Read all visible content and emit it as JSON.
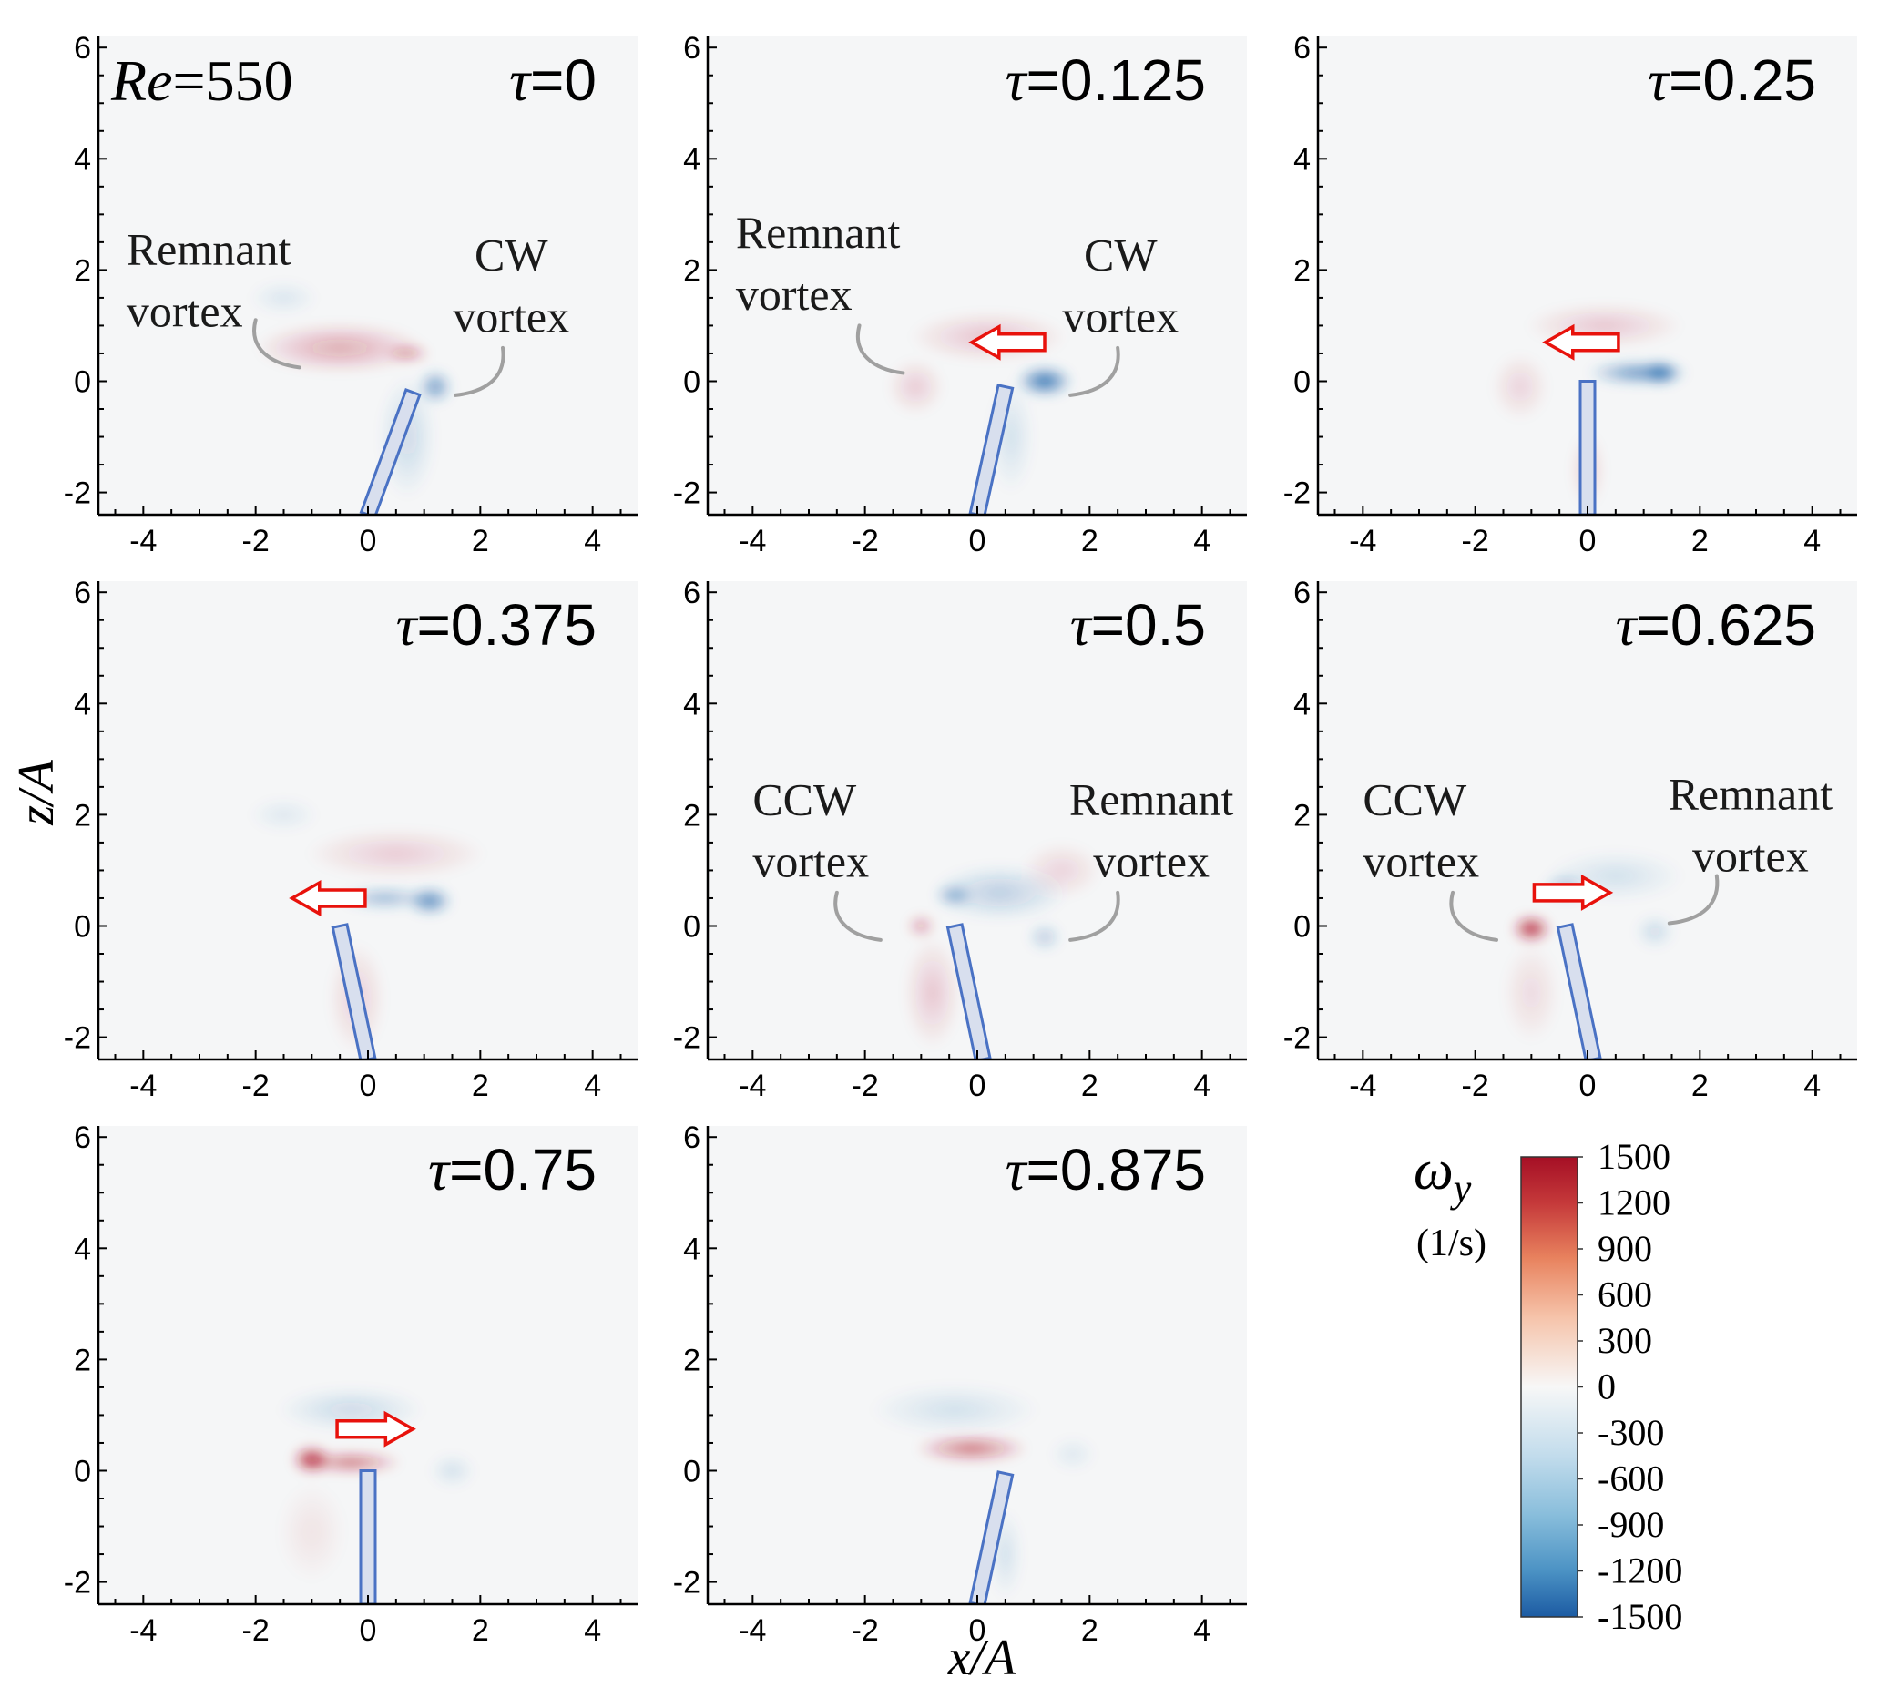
{
  "figure": {
    "re_label": "Re",
    "re_value": "=550",
    "x_axis_label": "x/A",
    "y_axis_label": "z/A"
  },
  "chart_data": {
    "type": "heatmap",
    "title": "",
    "xlabel": "x/A",
    "ylabel": "z/A",
    "xlim": [
      -4.8,
      4.8
    ],
    "ylim": [
      -2.4,
      6.2
    ],
    "x_ticks": [
      -4,
      -2,
      0,
      2,
      4
    ],
    "y_ticks": [
      -2,
      0,
      2,
      4,
      6
    ],
    "colorbar": {
      "title": "ω",
      "title_sub": "y",
      "units": "(1/s)",
      "range": [
        -1500,
        1500
      ],
      "ticks": [
        "1500",
        "1200",
        "900",
        "600",
        "300",
        "0",
        "-300",
        "-600",
        "-900",
        "-1200",
        "-1500"
      ]
    },
    "panels": [
      {
        "tau": "0",
        "plate": {
          "x_base": 0,
          "x_tip": 0.8,
          "z_tip": -0.2
        },
        "arrow": null,
        "vortices": [
          {
            "x": -0.5,
            "z": 0.6,
            "rx": 1.5,
            "rz": 0.45,
            "sign": 1,
            "strength": 0.35
          },
          {
            "x": 0.7,
            "z": 0.5,
            "rx": 0.4,
            "rz": 0.15,
            "sign": 1,
            "strength": 0.5
          },
          {
            "x": 1.2,
            "z": -0.1,
            "rx": 0.3,
            "rz": 0.3,
            "sign": -1,
            "strength": 0.65
          },
          {
            "x": 0.7,
            "z": -1.0,
            "rx": 0.5,
            "rz": 1.1,
            "sign": -1,
            "strength": 0.2
          },
          {
            "x": -1.5,
            "z": 1.5,
            "rx": 0.6,
            "rz": 0.3,
            "sign": -1,
            "strength": 0.12
          }
        ],
        "annotations": [
          {
            "lines": [
              "Remnant",
              "vortex"
            ],
            "x": -4.3,
            "z": 2.1,
            "anchor": "start",
            "curve": "left-down",
            "cx": -2.0,
            "cz": 1.1
          },
          {
            "lines": [
              "CW",
              "vortex"
            ],
            "x": 2.55,
            "z": 2.0,
            "anchor": "middle",
            "curve": "right-down",
            "cx": 2.4,
            "cz": 0.6
          }
        ]
      },
      {
        "tau": "0.125",
        "plate": {
          "x_base": 0,
          "x_tip": 0.5,
          "z_tip": -0.1
        },
        "arrow": {
          "dir": "left",
          "x0": 1.2,
          "x1": -0.1,
          "z": 0.7
        },
        "vortices": [
          {
            "x": 1.2,
            "z": 0.0,
            "rx": 0.5,
            "rz": 0.28,
            "sign": -1,
            "strength": 0.95
          },
          {
            "x": 0.2,
            "z": 0.8,
            "rx": 1.4,
            "rz": 0.45,
            "sign": 1,
            "strength": 0.22
          },
          {
            "x": -1.1,
            "z": -0.1,
            "rx": 0.5,
            "rz": 0.5,
            "sign": 1,
            "strength": 0.18
          },
          {
            "x": 0.6,
            "z": -1.0,
            "rx": 0.4,
            "rz": 1.0,
            "sign": -1,
            "strength": 0.15
          }
        ],
        "annotations": [
          {
            "lines": [
              "Remnant",
              "vortex"
            ],
            "x": -4.3,
            "z": 2.4,
            "anchor": "start",
            "curve": "left-down",
            "cx": -2.1,
            "cz": 1.0
          },
          {
            "lines": [
              "CW",
              "vortex"
            ],
            "x": 2.55,
            "z": 2.0,
            "anchor": "middle",
            "curve": "right-down",
            "cx": 2.5,
            "cz": 0.6
          }
        ]
      },
      {
        "tau": "0.25",
        "plate": {
          "x_base": 0,
          "x_tip": 0,
          "z_tip": 0
        },
        "arrow": {
          "dir": "left",
          "x0": 0.55,
          "x1": -0.75,
          "z": 0.7
        },
        "vortices": [
          {
            "x": 0.9,
            "z": 0.15,
            "rx": 0.9,
            "rz": 0.22,
            "sign": -1,
            "strength": 0.7
          },
          {
            "x": 1.3,
            "z": 0.15,
            "rx": 0.35,
            "rz": 0.22,
            "sign": -1,
            "strength": 0.95
          },
          {
            "x": 0.3,
            "z": 1.0,
            "rx": 1.4,
            "rz": 0.4,
            "sign": 1,
            "strength": 0.2
          },
          {
            "x": -1.2,
            "z": -0.1,
            "rx": 0.5,
            "rz": 0.6,
            "sign": 1,
            "strength": 0.15
          },
          {
            "x": 0.0,
            "z": -1.6,
            "rx": 0.3,
            "rz": 0.7,
            "sign": 1,
            "strength": 0.18
          }
        ],
        "annotations": []
      },
      {
        "tau": "0.375",
        "plate": {
          "x_base": 0,
          "x_tip": -0.5,
          "z_tip": 0
        },
        "arrow": {
          "dir": "left",
          "x0": -0.05,
          "x1": -1.35,
          "z": 0.5
        },
        "vortices": [
          {
            "x": 1.1,
            "z": 0.45,
            "rx": 0.4,
            "rz": 0.25,
            "sign": -1,
            "strength": 0.8
          },
          {
            "x": 0.3,
            "z": 0.5,
            "rx": 0.8,
            "rz": 0.2,
            "sign": -1,
            "strength": 0.45
          },
          {
            "x": 0.5,
            "z": 1.3,
            "rx": 1.6,
            "rz": 0.45,
            "sign": 1,
            "strength": 0.18
          },
          {
            "x": -0.2,
            "z": -1.3,
            "rx": 0.5,
            "rz": 1.0,
            "sign": 1,
            "strength": 0.17
          },
          {
            "x": -1.5,
            "z": 2.0,
            "rx": 0.6,
            "rz": 0.3,
            "sign": -1,
            "strength": 0.1
          }
        ],
        "annotations": []
      },
      {
        "tau": "0.5",
        "plate": {
          "x_base": 0.1,
          "x_tip": -0.4,
          "z_tip": 0
        },
        "arrow": null,
        "vortices": [
          {
            "x": -0.4,
            "z": 0.55,
            "rx": 0.35,
            "rz": 0.2,
            "sign": -1,
            "strength": 0.55
          },
          {
            "x": 0.4,
            "z": 0.6,
            "rx": 1.2,
            "rz": 0.5,
            "sign": -1,
            "strength": 0.28
          },
          {
            "x": 1.2,
            "z": -0.2,
            "rx": 0.3,
            "rz": 0.25,
            "sign": -1,
            "strength": 0.3
          },
          {
            "x": -1.0,
            "z": 0.0,
            "rx": 0.25,
            "rz": 0.2,
            "sign": 1,
            "strength": 0.4
          },
          {
            "x": -0.8,
            "z": -1.2,
            "rx": 0.5,
            "rz": 1.0,
            "sign": 1,
            "strength": 0.2
          },
          {
            "x": 1.5,
            "z": 1.0,
            "rx": 0.7,
            "rz": 0.5,
            "sign": 1,
            "strength": 0.15
          }
        ],
        "annotations": [
          {
            "lines": [
              "CCW",
              "vortex"
            ],
            "x": -4.0,
            "z": 2.0,
            "anchor": "start",
            "curve": "left-down",
            "cx": -2.5,
            "cz": 0.6
          },
          {
            "lines": [
              "Remnant",
              "vortex"
            ],
            "x": 3.1,
            "z": 2.0,
            "anchor": "middle",
            "curve": "right-down",
            "cx": 2.5,
            "cz": 0.6
          }
        ]
      },
      {
        "tau": "0.625",
        "plate": {
          "x_base": 0.1,
          "x_tip": -0.4,
          "z_tip": 0
        },
        "arrow": {
          "dir": "right",
          "x0": -0.95,
          "x1": 0.4,
          "z": 0.6
        },
        "vortices": [
          {
            "x": -1.0,
            "z": -0.05,
            "rx": 0.35,
            "rz": 0.25,
            "sign": 1,
            "strength": 0.95
          },
          {
            "x": -0.4,
            "z": 0.7,
            "rx": 0.4,
            "rz": 0.25,
            "sign": -1,
            "strength": 0.35
          },
          {
            "x": 0.5,
            "z": 0.9,
            "rx": 1.2,
            "rz": 0.45,
            "sign": -1,
            "strength": 0.15
          },
          {
            "x": 1.2,
            "z": -0.1,
            "rx": 0.35,
            "rz": 0.3,
            "sign": -1,
            "strength": 0.2
          },
          {
            "x": -1.0,
            "z": -1.2,
            "rx": 0.5,
            "rz": 0.9,
            "sign": 1,
            "strength": 0.12
          }
        ],
        "annotations": [
          {
            "lines": [
              "CCW",
              "vortex"
            ],
            "x": -4.0,
            "z": 2.0,
            "anchor": "start",
            "curve": "left-down",
            "cx": -2.4,
            "cz": 0.6
          },
          {
            "lines": [
              "Remnant",
              "vortex"
            ],
            "x": 2.9,
            "z": 2.1,
            "anchor": "middle",
            "curve": "right-down",
            "cx": 2.3,
            "cz": 0.9
          }
        ]
      },
      {
        "tau": "0.75",
        "plate": {
          "x_base": 0,
          "x_tip": 0,
          "z_tip": 0
        },
        "arrow": {
          "dir": "right",
          "x0": -0.55,
          "x1": 0.8,
          "z": 0.75
        },
        "vortices": [
          {
            "x": -1.0,
            "z": 0.2,
            "rx": 0.35,
            "rz": 0.25,
            "sign": 1,
            "strength": 1.0
          },
          {
            "x": -0.3,
            "z": 0.15,
            "rx": 0.9,
            "rz": 0.2,
            "sign": 1,
            "strength": 0.6
          },
          {
            "x": -0.3,
            "z": 1.1,
            "rx": 1.3,
            "rz": 0.4,
            "sign": -1,
            "strength": 0.2
          },
          {
            "x": 1.5,
            "z": 0.0,
            "rx": 0.4,
            "rz": 0.3,
            "sign": -1,
            "strength": 0.15
          },
          {
            "x": -1.0,
            "z": -1.1,
            "rx": 0.6,
            "rz": 0.9,
            "sign": 1,
            "strength": 0.08
          }
        ],
        "annotations": []
      },
      {
        "tau": "0.875",
        "plate": {
          "x_base": 0,
          "x_tip": 0.5,
          "z_tip": -0.05
        },
        "arrow": null,
        "vortices": [
          {
            "x": -0.1,
            "z": 0.4,
            "rx": 1.0,
            "rz": 0.25,
            "sign": 1,
            "strength": 0.6
          },
          {
            "x": -0.4,
            "z": 1.1,
            "rx": 1.5,
            "rz": 0.45,
            "sign": -1,
            "strength": 0.15
          },
          {
            "x": 0.5,
            "z": -1.5,
            "rx": 0.3,
            "rz": 0.8,
            "sign": -1,
            "strength": 0.15
          },
          {
            "x": 1.7,
            "z": 0.3,
            "rx": 0.4,
            "rz": 0.3,
            "sign": -1,
            "strength": 0.1
          }
        ],
        "annotations": []
      }
    ]
  },
  "colors": {
    "positive": "#b2182b",
    "negative": "#2166ac",
    "background": "#f5f6f7",
    "plate_fill": "#d8dfee",
    "plate_stroke": "#4a72c4",
    "arrow": "#e8120c",
    "curve": "#a0a0a0"
  }
}
